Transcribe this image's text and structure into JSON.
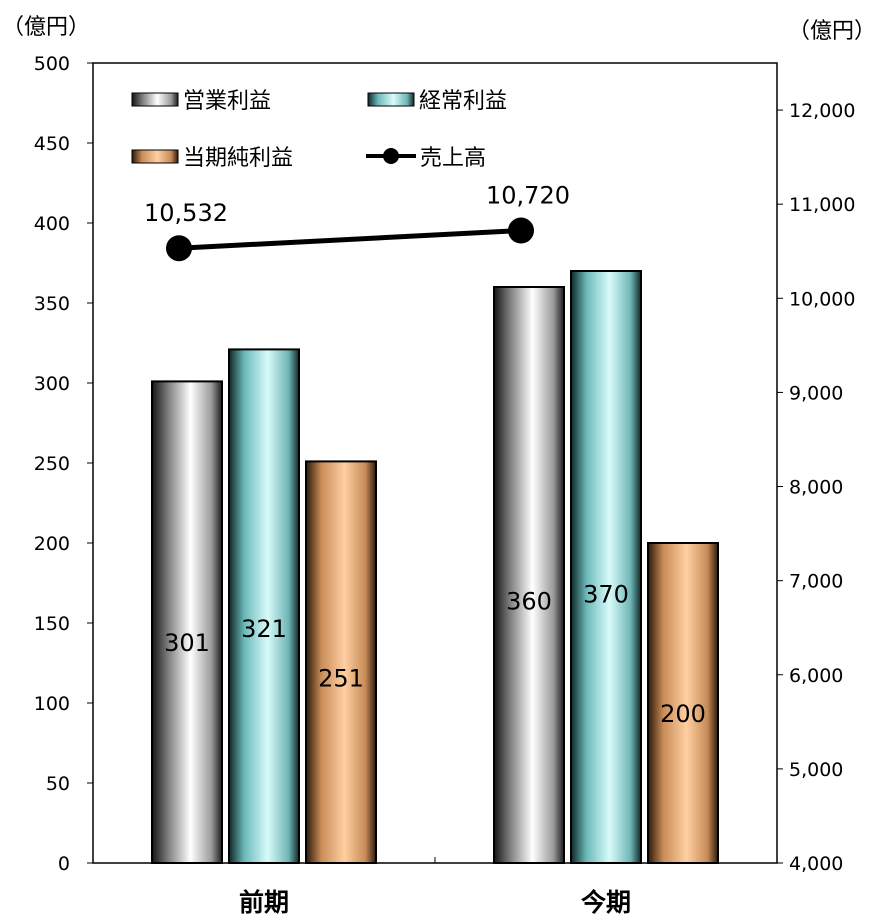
{
  "chart_data": {
    "type": "bar",
    "categories": [
      "前期",
      "今期"
    ],
    "series": [
      {
        "name": "営業利益",
        "axis": "left",
        "values": [
          301,
          360
        ],
        "color": "#c8c8c8"
      },
      {
        "name": "経常利益",
        "axis": "left",
        "values": [
          321,
          370
        ],
        "color": "#9ee3e3"
      },
      {
        "name": "当期純利益",
        "axis": "left",
        "values": [
          251,
          200
        ],
        "color": "#f4bc88"
      },
      {
        "name": "売上高",
        "axis": "right",
        "type": "line",
        "values": [
          10532,
          10720
        ],
        "color": "#000000"
      }
    ],
    "data_labels": {
      "bars": [
        [
          "301",
          "360"
        ],
        [
          "321",
          "370"
        ],
        [
          "251",
          "200"
        ]
      ],
      "line": [
        "10,532",
        "10,720"
      ]
    },
    "left_axis": {
      "unit": "（億円）",
      "ylim": [
        0,
        500
      ],
      "ticks": [
        "0",
        "50",
        "100",
        "150",
        "200",
        "250",
        "300",
        "350",
        "400",
        "450",
        "500"
      ]
    },
    "right_axis": {
      "unit": "（億円）",
      "ylim": [
        4000,
        12500
      ],
      "ticks": [
        "4,000",
        "5,000",
        "6,000",
        "7,000",
        "8,000",
        "9,000",
        "10,000",
        "11,000",
        "12,000"
      ]
    },
    "legend": {
      "position": "top-left",
      "columns": 2
    },
    "grid": false
  }
}
